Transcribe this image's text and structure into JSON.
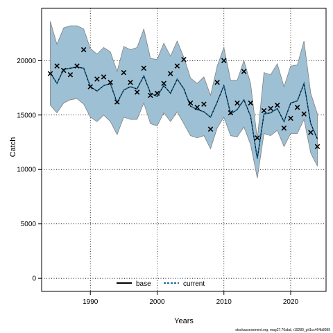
{
  "chart_data": {
    "type": "line",
    "xlabel": "Years",
    "ylabel": "Catch",
    "xlim": [
      1982.7,
      2025.3
    ],
    "ylim": [
      -1200,
      24800
    ],
    "x_ticks": [
      1990,
      2000,
      2010,
      2020
    ],
    "y_ticks": [
      0,
      5000,
      10000,
      15000,
      20000
    ],
    "grid": true,
    "years": [
      1984,
      1985,
      1986,
      1987,
      1988,
      1989,
      1990,
      1991,
      1992,
      1993,
      1994,
      1995,
      1996,
      1997,
      1998,
      1999,
      2000,
      2001,
      2002,
      2003,
      2004,
      2005,
      2006,
      2007,
      2008,
      2009,
      2010,
      2011,
      2012,
      2013,
      2014,
      2015,
      2016,
      2017,
      2018,
      2019,
      2020,
      2021,
      2022,
      2023,
      2024
    ],
    "series": [
      {
        "name": "base",
        "style": "solid",
        "color": "#000000",
        "values": [
          18900,
          17900,
          19200,
          19300,
          19400,
          19300,
          17600,
          17200,
          17700,
          17900,
          16100,
          17300,
          17600,
          17400,
          18600,
          17000,
          16700,
          17700,
          17000,
          18300,
          17400,
          15800,
          15500,
          15300,
          14800,
          16200,
          17700,
          15100,
          15500,
          16400,
          14900,
          11000,
          15100,
          15200,
          15600,
          14400,
          16100,
          16300,
          17900,
          14200,
          12800
        ]
      },
      {
        "name": "current",
        "style": "dashed",
        "color": "#1a6fa0",
        "values": [
          18900,
          17900,
          19200,
          19300,
          19400,
          19300,
          17600,
          17200,
          17700,
          17900,
          16100,
          17300,
          17600,
          17400,
          18600,
          17000,
          16700,
          17700,
          17000,
          18300,
          17400,
          15800,
          15500,
          15300,
          14800,
          16200,
          17700,
          15100,
          15500,
          16400,
          14900,
          11000,
          15100,
          15200,
          15600,
          14400,
          16100,
          16300,
          17900,
          14200,
          12800
        ]
      }
    ],
    "interval": {
      "fill": "#9ec0d4",
      "upper": [
        23600,
        21500,
        23000,
        23200,
        23200,
        22900,
        21100,
        20600,
        21200,
        20800,
        19000,
        21300,
        21000,
        21200,
        22900,
        20200,
        20100,
        21600,
        20400,
        21800,
        20300,
        18400,
        17900,
        18500,
        16800,
        19500,
        21200,
        18200,
        18200,
        20000,
        17900,
        12800,
        18900,
        18700,
        19700,
        17600,
        19500,
        19600,
        21800,
        17000,
        15100
      ],
      "lower": [
        15900,
        15200,
        16100,
        16400,
        16500,
        16000,
        14800,
        14400,
        15000,
        14400,
        13200,
        14800,
        14600,
        14600,
        16100,
        14200,
        14000,
        15200,
        14400,
        15300,
        14200,
        13100,
        12900,
        13100,
        11900,
        13800,
        14800,
        13100,
        13000,
        13900,
        12300,
        9200,
        13300,
        13100,
        13600,
        12100,
        13300,
        13300,
        14600,
        11500,
        10300
      ]
    },
    "observed": {
      "marker": "x",
      "values": [
        18800,
        19500,
        19100,
        18700,
        19500,
        21000,
        17600,
        18300,
        18500,
        18000,
        16200,
        18900,
        18000,
        17100,
        19300,
        16800,
        17000,
        17900,
        18800,
        19500,
        20100,
        16100,
        15700,
        16000,
        13700,
        18000,
        20000,
        15200,
        16100,
        19000,
        16100,
        12900,
        15400,
        15600,
        15900,
        13800,
        14700,
        15700,
        15100,
        13400,
        12100
      ]
    },
    "legend": {
      "position": "bottom-center",
      "entries": [
        "base",
        "current"
      ]
    }
  },
  "footnote": "stockassessment.org, mag27.76abd, r19280_git1cc464b8089"
}
